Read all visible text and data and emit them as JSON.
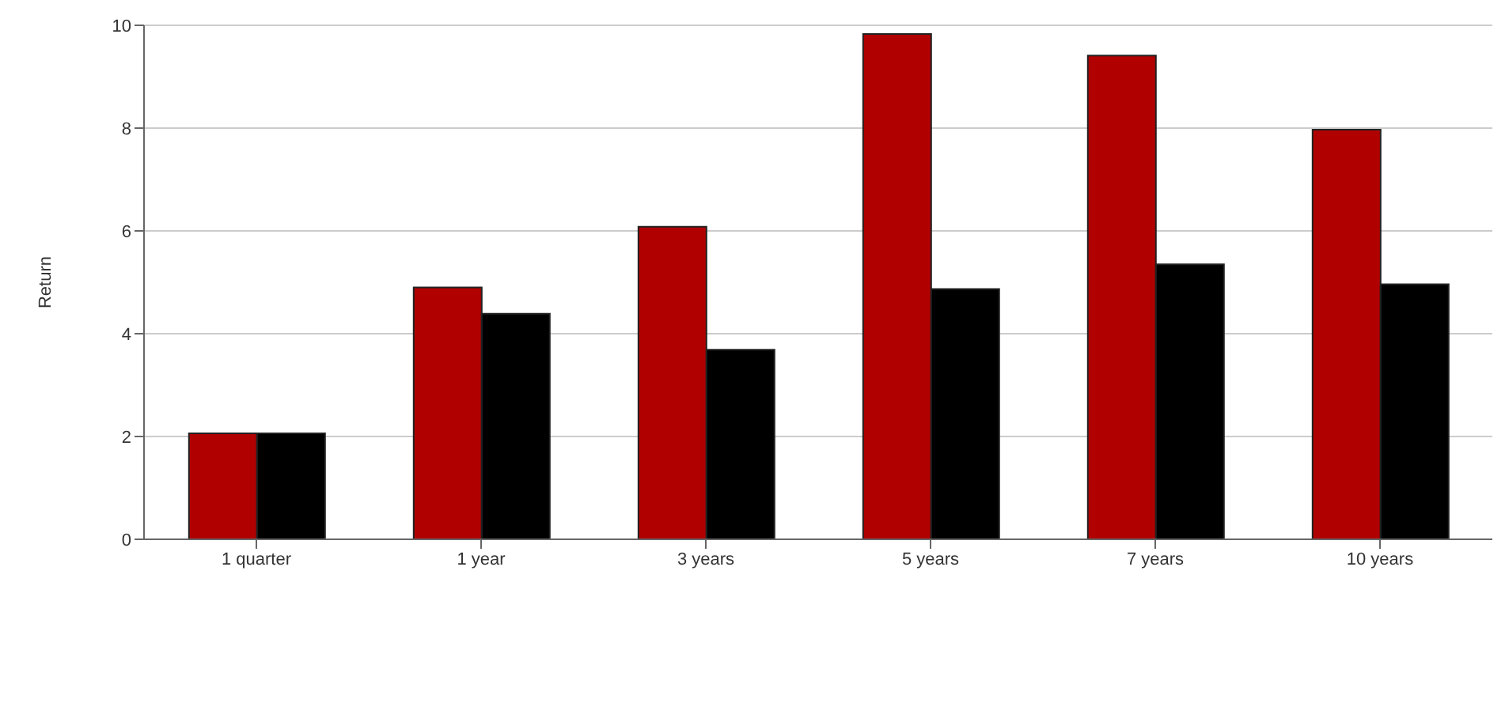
{
  "chart_data": {
    "type": "bar",
    "ylabel": "Return",
    "categories": [
      "1 quarter",
      "1 year",
      "3 years",
      "5 years",
      "7 years",
      "10 years"
    ],
    "series": [
      {
        "color": "#b00000",
        "values": [
          2.06,
          4.9,
          6.08,
          9.83,
          9.41,
          7.97
        ]
      },
      {
        "color": "#000000",
        "values": [
          2.06,
          4.39,
          3.69,
          4.87,
          5.35,
          4.96
        ]
      }
    ],
    "ylim": [
      0,
      10
    ],
    "yticks": [
      0,
      2,
      4,
      6,
      8,
      10
    ],
    "grid": "y"
  }
}
